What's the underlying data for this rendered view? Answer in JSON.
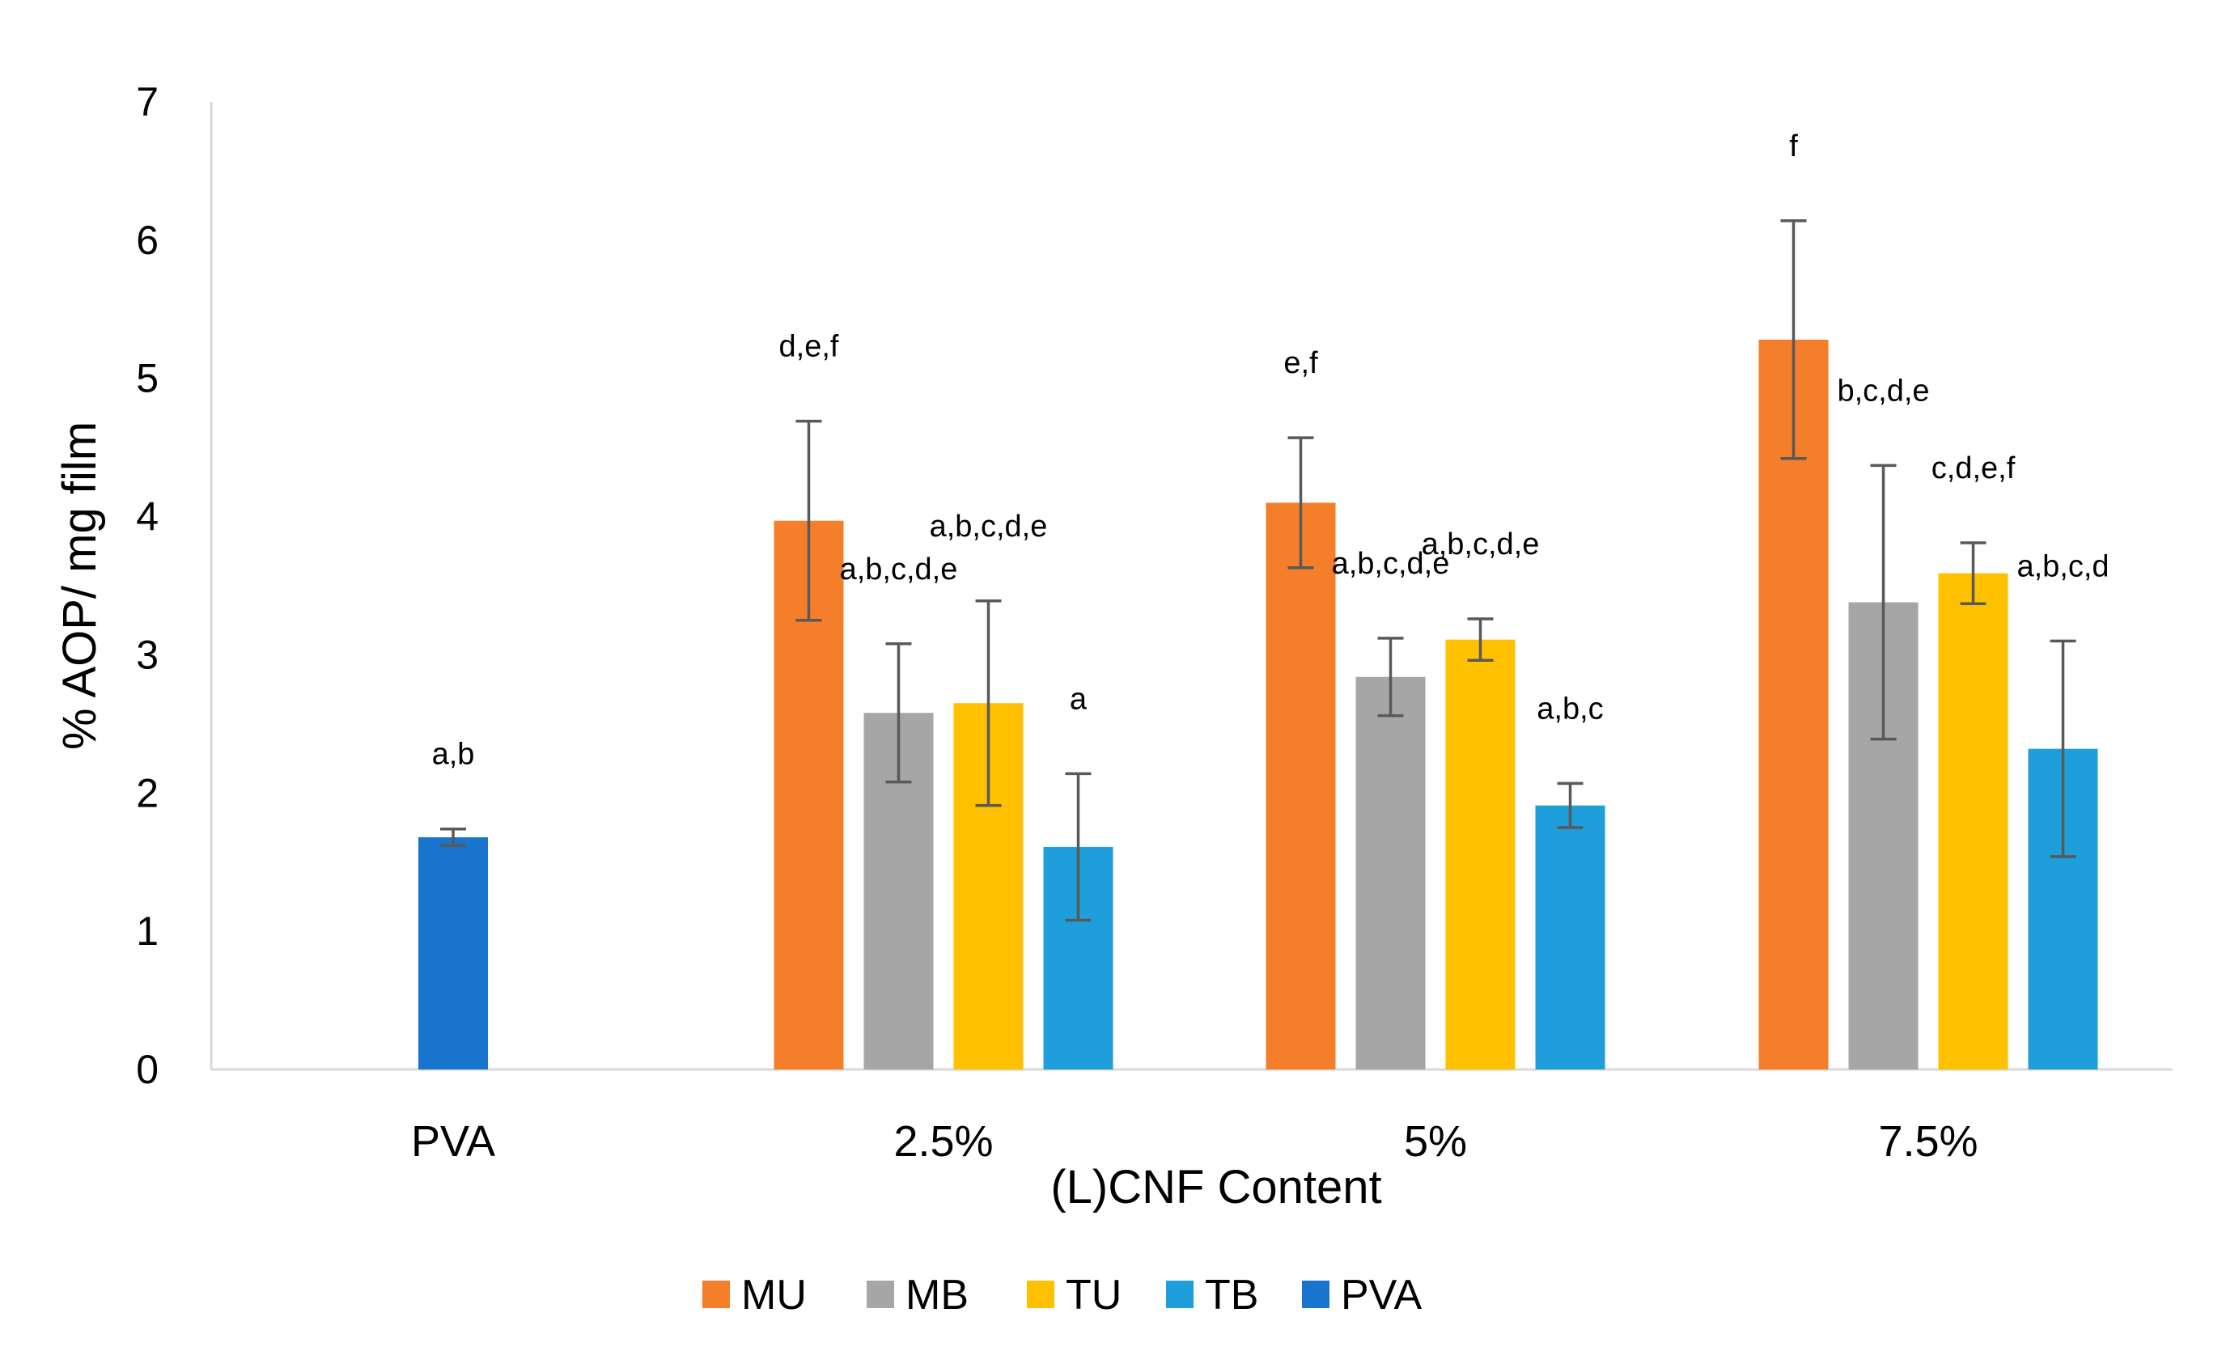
{
  "chart_data": {
    "type": "bar",
    "title": "",
    "xlabel": "(L)CNF Content",
    "ylabel": "% AOP/ mg film",
    "ylim": [
      0,
      7
    ],
    "yticks": [
      "0",
      "1",
      "2",
      "3",
      "4",
      "5",
      "6",
      "7"
    ],
    "grid": false,
    "legend_position": "bottom",
    "categories": [
      "PVA",
      "2.5%",
      "5%",
      "7.5%"
    ],
    "series": [
      {
        "name": "MU",
        "color": "#f47e2a",
        "values": [
          null,
          3.97,
          4.1,
          5.28
        ],
        "errors": [
          null,
          0.72,
          0.47,
          0.86
        ],
        "letters": [
          null,
          "d,e,f",
          "e,f",
          "f"
        ]
      },
      {
        "name": "MB",
        "color": "#a6a6a6",
        "values": [
          null,
          2.58,
          2.84,
          3.38
        ],
        "errors": [
          null,
          0.5,
          0.28,
          0.99
        ],
        "letters": [
          null,
          "a,b,c,d,e",
          "a,b,c,d,e",
          "b,c,d,e"
        ]
      },
      {
        "name": "TU",
        "color": "#ffc000",
        "values": [
          null,
          2.65,
          3.11,
          3.59
        ],
        "errors": [
          null,
          0.74,
          0.15,
          0.22
        ],
        "letters": [
          null,
          "a,b,c,d,e",
          "a,b,c,d,e",
          "c,d,e,f"
        ]
      },
      {
        "name": "TB",
        "color": "#1e9fdb",
        "values": [
          null,
          1.61,
          1.91,
          2.32
        ],
        "errors": [
          null,
          0.53,
          0.16,
          0.78
        ],
        "letters": [
          null,
          "a",
          "a,b,c",
          "a,b,c,d"
        ]
      },
      {
        "name": "PVA",
        "color": "#1874cd",
        "values": [
          1.68,
          null,
          null,
          null
        ],
        "errors": [
          0.06,
          null,
          null,
          null
        ],
        "letters": [
          "a,b",
          null,
          null,
          null
        ]
      }
    ]
  }
}
